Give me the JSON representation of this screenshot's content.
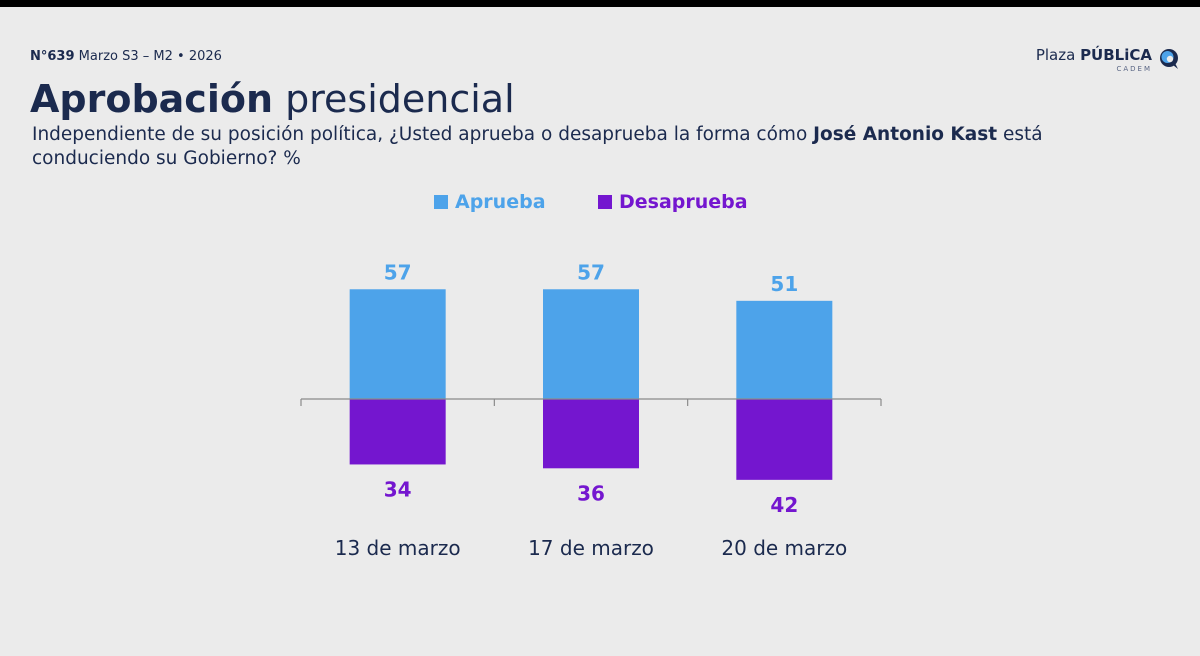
{
  "header": {
    "issue": "N°639",
    "edition": "Marzo S3 – M2 • 2026",
    "brand_light": "Plaza ",
    "brand_bold": "PÚBLiCA",
    "brand_sub": "CADEM",
    "logo_icon": "speech-bubble-logo-icon"
  },
  "title": {
    "bold": "Aprobación",
    "rest": "presidencial"
  },
  "question": {
    "part1": "Independiente de su posición política, ¿Usted aprueba o desaprueba la forma cómo ",
    "bold": "José Antonio Kast",
    "part2": " está conduciendo su Gobierno? %"
  },
  "colors": {
    "aprueba": "#4da3ea",
    "desaprueba": "#7416cf",
    "text": "#1b2a4e",
    "axis": "#8a8a8a"
  },
  "chart_data": {
    "type": "bar",
    "title": "Aprobación presidencial",
    "xlabel": "",
    "ylabel": "%",
    "categories": [
      "13 de marzo",
      "17 de marzo",
      "20 de marzo"
    ],
    "series": [
      {
        "name": "Aprueba",
        "values": [
          57,
          57,
          51
        ],
        "direction": "up"
      },
      {
        "name": "Desaprueba",
        "values": [
          34,
          36,
          42
        ],
        "direction": "down"
      }
    ],
    "legend": "top-center",
    "grid": false
  }
}
